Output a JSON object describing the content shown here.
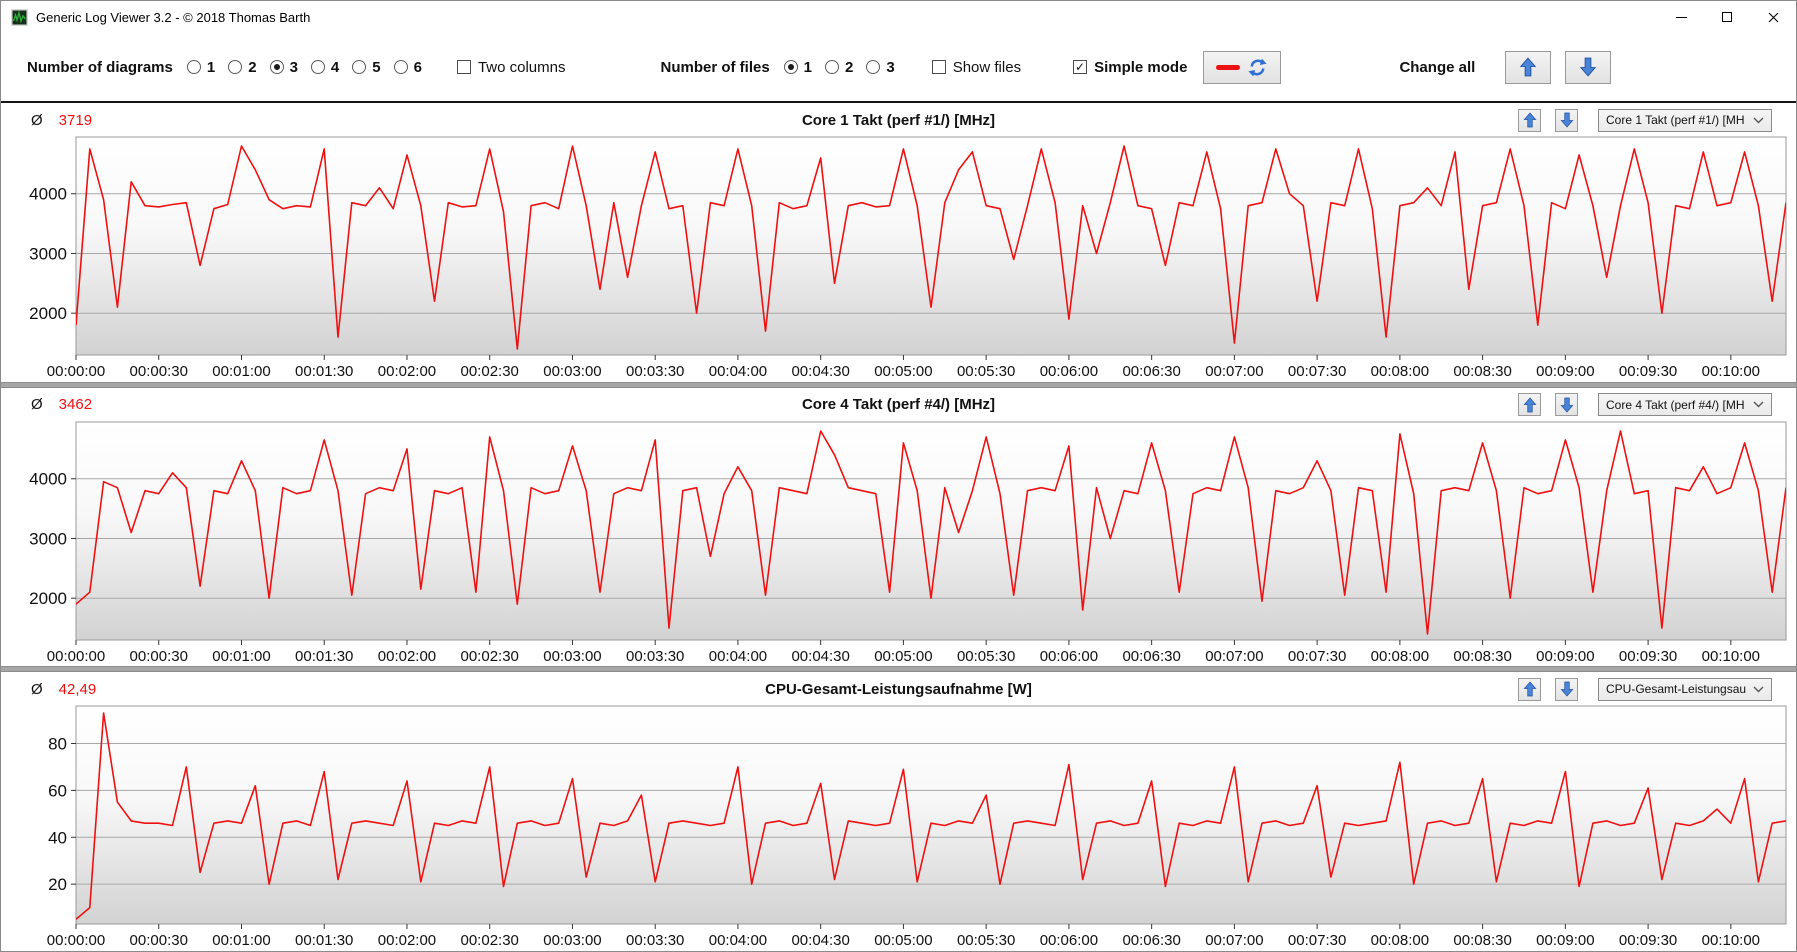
{
  "window": {
    "title": "Generic Log Viewer 3.2 - © 2018 Thomas Barth"
  },
  "toolbar": {
    "diagrams_label": "Number of diagrams",
    "diagram_options": [
      {
        "label": "1",
        "selected": false
      },
      {
        "label": "2",
        "selected": false
      },
      {
        "label": "3",
        "selected": true
      },
      {
        "label": "4",
        "selected": false
      },
      {
        "label": "5",
        "selected": false
      },
      {
        "label": "6",
        "selected": false
      }
    ],
    "two_columns_label": "Two columns",
    "two_columns_checked": false,
    "files_label": "Number of files",
    "file_options": [
      {
        "label": "1",
        "selected": true
      },
      {
        "label": "2",
        "selected": false
      },
      {
        "label": "3",
        "selected": false
      }
    ],
    "show_files_label": "Show files",
    "show_files_checked": false,
    "simple_mode_label": "Simple mode",
    "simple_mode_checked": true,
    "change_all_label": "Change all"
  },
  "labels": {
    "avg_symbol": "Ø"
  },
  "colors": {
    "series_red": "#ee1111",
    "grid_gray": "#a7a7a7",
    "plot_border": "#9a9a9a",
    "arrow_blue": "#4a84d8",
    "splitter_gray": "#a6a6a6"
  },
  "chart_data": {
    "type": "line",
    "series_color": "#ee1111",
    "x_tick_labels": [
      "00:00:00",
      "00:00:30",
      "00:01:00",
      "00:01:30",
      "00:02:00",
      "00:02:30",
      "00:03:00",
      "00:03:30",
      "00:04:00",
      "00:04:30",
      "00:05:00",
      "00:05:30",
      "00:06:00",
      "00:06:30",
      "00:07:00",
      "00:07:30",
      "00:08:00",
      "00:08:30",
      "00:09:00",
      "00:09:30",
      "00:10:00"
    ],
    "seconds_per_tick": 30,
    "seconds_per_point": 5,
    "total_seconds": 620,
    "grid": true,
    "legend": "none",
    "charts": [
      {
        "title": "Core 1 Takt (perf #1/) [MHz]",
        "average": "3719",
        "dropdown_value": "Core 1 Takt (perf #1/) [MH",
        "ylabel": "MHz",
        "yticks": [
          2000,
          3000,
          4000
        ],
        "ylim": [
          1300,
          4950
        ],
        "values": [
          1800,
          4750,
          3900,
          2100,
          4200,
          3800,
          3780,
          3820,
          3850,
          2800,
          3750,
          3820,
          4800,
          4400,
          3900,
          3750,
          3800,
          3780,
          4750,
          1600,
          3850,
          3800,
          4100,
          3750,
          4650,
          3800,
          2200,
          3850,
          3780,
          3800,
          4750,
          3700,
          1400,
          3800,
          3850,
          3750,
          4800,
          3800,
          2400,
          3850,
          2600,
          3800,
          4700,
          3750,
          3800,
          2000,
          3850,
          3800,
          4750,
          3800,
          1700,
          3850,
          3750,
          3800,
          4600,
          2500,
          3800,
          3850,
          3780,
          3800,
          4750,
          3800,
          2100,
          3850,
          4400,
          4700,
          3800,
          3750,
          2900,
          3800,
          4750,
          3850,
          1900,
          3800,
          3000,
          3850,
          4800,
          3800,
          3750,
          2800,
          3850,
          3800,
          4700,
          3750,
          1500,
          3800,
          3850,
          4750,
          4000,
          3800,
          2200,
          3850,
          3800,
          4750,
          3750,
          1600,
          3800,
          3850,
          4100,
          3800,
          4700,
          2400,
          3800,
          3850,
          4750,
          3800,
          1800,
          3850,
          3750,
          4650,
          3800,
          2600,
          3800,
          4750,
          3850,
          2000,
          3800,
          3750,
          4700,
          3800,
          3850,
          4700,
          3800,
          2200,
          3850
        ]
      },
      {
        "title": "Core 4 Takt (perf #4/) [MHz]",
        "average": "3462",
        "dropdown_value": "Core 4 Takt (perf #4/) [MH",
        "ylabel": "MHz",
        "yticks": [
          2000,
          3000,
          4000
        ],
        "ylim": [
          1300,
          4950
        ],
        "values": [
          1900,
          2100,
          3950,
          3850,
          3100,
          3800,
          3750,
          4100,
          3850,
          2200,
          3800,
          3750,
          4300,
          3800,
          2000,
          3850,
          3750,
          3800,
          4650,
          3800,
          2050,
          3750,
          3850,
          3800,
          4500,
          2150,
          3800,
          3750,
          3850,
          2100,
          4700,
          3800,
          1900,
          3850,
          3750,
          3800,
          4550,
          3800,
          2100,
          3750,
          3850,
          3800,
          4650,
          1500,
          3800,
          3850,
          2700,
          3750,
          4200,
          3800,
          2050,
          3850,
          3800,
          3750,
          4800,
          4400,
          3850,
          3800,
          3750,
          2100,
          4600,
          3800,
          2000,
          3850,
          3100,
          3800,
          4700,
          3750,
          2050,
          3800,
          3850,
          3800,
          4550,
          1800,
          3850,
          3000,
          3800,
          3750,
          4600,
          3800,
          2100,
          3750,
          3850,
          3800,
          4700,
          3850,
          1950,
          3800,
          3750,
          3850,
          4300,
          3800,
          2050,
          3850,
          3800,
          2100,
          4750,
          3750,
          1400,
          3800,
          3850,
          3800,
          4600,
          3800,
          2000,
          3850,
          3750,
          3800,
          4650,
          3850,
          2100,
          3800,
          4800,
          3750,
          3800,
          1500,
          3850,
          3800,
          4200,
          3750,
          3850,
          4600,
          3800,
          2100,
          3850
        ]
      },
      {
        "title": "CPU-Gesamt-Leistungsaufnahme [W]",
        "average": "42,49",
        "dropdown_value": "CPU-Gesamt-Leistungsau",
        "ylabel": "W",
        "yticks": [
          20,
          40,
          60,
          80
        ],
        "ylim": [
          3,
          96
        ],
        "values": [
          5,
          10,
          93,
          55,
          47,
          46,
          46,
          45,
          70,
          25,
          46,
          47,
          46,
          62,
          20,
          46,
          47,
          45,
          68,
          22,
          46,
          47,
          46,
          45,
          64,
          21,
          46,
          45,
          47,
          46,
          70,
          19,
          46,
          47,
          45,
          46,
          65,
          23,
          46,
          45,
          47,
          58,
          21,
          46,
          47,
          46,
          45,
          46,
          70,
          20,
          46,
          47,
          45,
          46,
          63,
          22,
          47,
          46,
          45,
          46,
          69,
          21,
          46,
          45,
          47,
          46,
          58,
          20,
          46,
          47,
          46,
          45,
          71,
          22,
          46,
          47,
          45,
          46,
          64,
          19,
          46,
          45,
          47,
          46,
          70,
          21,
          46,
          47,
          45,
          46,
          62,
          23,
          46,
          45,
          46,
          47,
          72,
          20,
          46,
          47,
          45,
          46,
          65,
          21,
          46,
          45,
          47,
          46,
          68,
          19,
          46,
          47,
          45,
          46,
          61,
          22,
          46,
          45,
          47,
          52,
          46,
          65,
          21,
          46,
          47
        ]
      }
    ]
  }
}
